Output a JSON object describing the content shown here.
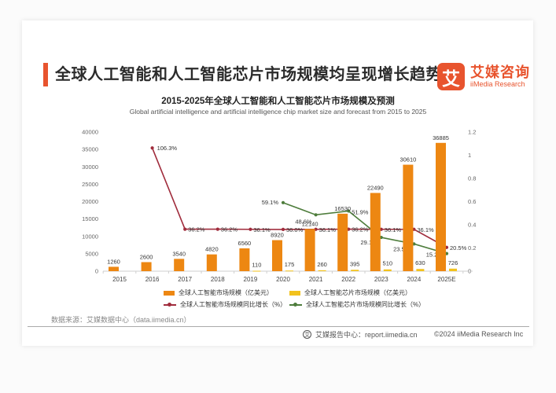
{
  "header": {
    "title": "全球人工智能和人工智能芯片市场规模均呈现增长趋势",
    "logo": {
      "glyph": "艾",
      "brand_cn": "艾媒咨询",
      "brand_en": "iiMedia Research"
    }
  },
  "chart_data": {
    "type": "combo",
    "title": "2015-2025年全球人工智能和人工智能芯片市场规模及预测",
    "subtitle": "Global artificial intelligence and artificial intelligence chip market size and forecast from 2015 to 2025",
    "categories": [
      "2015",
      "2016",
      "2017",
      "2018",
      "2019",
      "2020",
      "2021",
      "2022",
      "2023",
      "2024",
      "2025E"
    ],
    "left_axis": {
      "min": 0,
      "max": 40000,
      "ticks": [
        0,
        5000,
        10000,
        15000,
        20000,
        25000,
        30000,
        35000,
        40000
      ]
    },
    "right_axis": {
      "min": 0,
      "max": 1.2,
      "ticks": [
        0,
        0.2,
        0.4,
        0.6,
        0.8,
        1,
        1.2
      ]
    },
    "grid": false,
    "legend_position": "bottom",
    "series": [
      {
        "name": "全球人工智能市场规模（亿美元）",
        "type": "bar",
        "axis": "left",
        "color": "#ED8712",
        "values": [
          1260,
          2600,
          3540,
          4820,
          6560,
          8920,
          12140,
          16530,
          22490,
          30610,
          36885
        ]
      },
      {
        "name": "全球人工智能芯片市场规模（亿美元）",
        "type": "bar",
        "axis": "left",
        "color": "#F2C21D",
        "values": [
          null,
          null,
          null,
          null,
          110,
          175,
          260,
          395,
          510,
          630,
          726
        ]
      },
      {
        "name": "全球人工智能市场规模同比增长（%）",
        "type": "line",
        "axis": "right",
        "color": "#A02C3C",
        "values": [
          null,
          1.063,
          0.362,
          0.362,
          0.361,
          0.36,
          0.361,
          0.362,
          0.361,
          0.361,
          0.205
        ],
        "labels": [
          null,
          "106.3%",
          "36.2%",
          "36.2%",
          "36.1%",
          "36.0%",
          "36.1%",
          "36.2%",
          "36.1%",
          "36.1%",
          "20.5%"
        ]
      },
      {
        "name": "全球人工智能芯片市场规模同比增长（%）",
        "type": "line",
        "axis": "right",
        "color": "#4E7D3C",
        "values": [
          null,
          null,
          null,
          null,
          null,
          0.591,
          0.486,
          0.519,
          0.291,
          0.235,
          0.152
        ],
        "labels": [
          null,
          null,
          null,
          null,
          null,
          "59.1%",
          "48.6%",
          "51.9%",
          "29.1%",
          "23.5%",
          "15.2%"
        ]
      }
    ]
  },
  "source_note": "数据来源：艾媒数据中心（data.iimedia.cn）",
  "footer": {
    "icon_glyph": "艾",
    "report_center": "艾媒报告中心：report.iimedia.cn",
    "copyright": "©2024 iiMedia Research Inc"
  },
  "colors": {
    "accent": "#E8542E",
    "bar_ai": "#ED8712",
    "bar_chip": "#F2C21D",
    "line_ai_growth": "#A02C3C",
    "line_chip_growth": "#4E7D3C"
  }
}
